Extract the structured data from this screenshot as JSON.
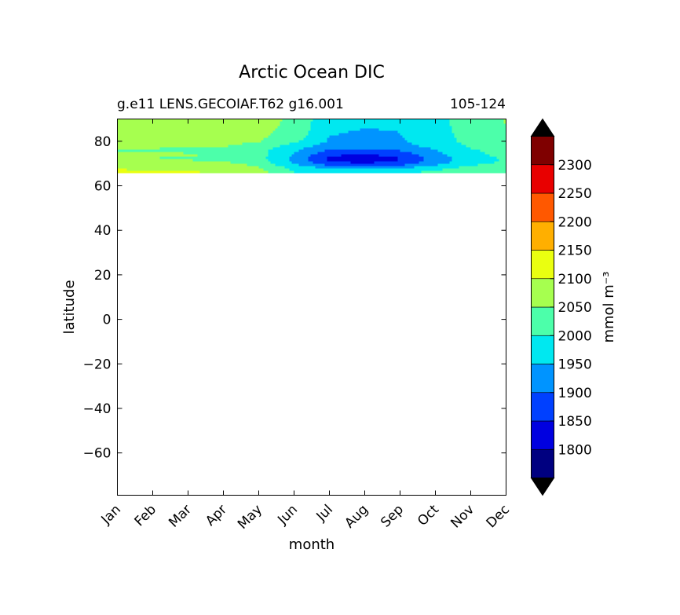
{
  "chart_data": {
    "type": "heatmap",
    "title": "Arctic Ocean DIC",
    "subtitle_left": "g.e11 LENS.GECOIAF.T62 g16.001",
    "subtitle_right": "105-124",
    "xlabel": "month",
    "ylabel": "latitude",
    "x_categories": [
      "Jan",
      "Feb",
      "Mar",
      "Apr",
      "May",
      "Jun",
      "Jul",
      "Aug",
      "Sep",
      "Oct",
      "Nov",
      "Dec"
    ],
    "ylim": [
      -79,
      90
    ],
    "yticks": [
      -60,
      -40,
      -20,
      0,
      20,
      40,
      60,
      80
    ],
    "ytick_labels": [
      "−60",
      "−40",
      "−20",
      "0",
      "20",
      "40",
      "60",
      "80"
    ],
    "data_lat_range": [
      66,
      90
    ],
    "colorbar": {
      "label": "mmol m⁻³",
      "levels": [
        1750,
        1800,
        1850,
        1900,
        1950,
        2000,
        2050,
        2100,
        2150,
        2200,
        2250,
        2300,
        2350
      ],
      "tick_labels": [
        "1800",
        "1850",
        "1900",
        "1950",
        "2000",
        "2050",
        "2100",
        "2150",
        "2200",
        "2250",
        "2300"
      ],
      "colors": [
        "#000080",
        "#0000e0",
        "#0040ff",
        "#0094ff",
        "#00e8f0",
        "#4cffaa",
        "#a6ff4f",
        "#eaff10",
        "#ffaf00",
        "#ff5800",
        "#e80000",
        "#7f0000"
      ],
      "extend": "both",
      "under_color": "#000000",
      "over_color": "#000000"
    },
    "latitudes": [
      66,
      68,
      70,
      72,
      74,
      76,
      78,
      80,
      82,
      84,
      86,
      88,
      90
    ],
    "values": [
      [
        2110,
        2108,
        2105,
        2095,
        2070,
        2000,
        1985,
        1985,
        1992,
        2010,
        2030,
        2050
      ],
      [
        2095,
        2092,
        2088,
        2078,
        2055,
        1985,
        1940,
        1935,
        1945,
        1985,
        2015,
        2040
      ],
      [
        2075,
        2072,
        2068,
        2060,
        2035,
        1945,
        1865,
        1850,
        1870,
        1930,
        1985,
        2010
      ],
      [
        2050,
        2048,
        2045,
        2038,
        2015,
        1935,
        1835,
        1820,
        1845,
        1920,
        1975,
        2005
      ],
      [
        2060,
        2058,
        2054,
        2046,
        2022,
        1945,
        1860,
        1845,
        1870,
        1935,
        1988,
        2015
      ],
      [
        2045,
        2043,
        2040,
        2034,
        2012,
        1960,
        1895,
        1890,
        1905,
        1950,
        1995,
        2020
      ],
      [
        2065,
        2063,
        2060,
        2054,
        2032,
        1980,
        1930,
        1925,
        1935,
        1965,
        2008,
        2032
      ],
      [
        2075,
        2073,
        2070,
        2066,
        2052,
        2010,
        1945,
        1942,
        1945,
        1975,
        2015,
        2042
      ],
      [
        2078,
        2076,
        2074,
        2070,
        2058,
        2025,
        1950,
        1946,
        1948,
        1978,
        2018,
        2046
      ],
      [
        2080,
        2078,
        2076,
        2072,
        2060,
        2035,
        1952,
        1948,
        1950,
        1980,
        2020,
        2048
      ],
      [
        2082,
        2080,
        2078,
        2074,
        2062,
        2040,
        1955,
        1950,
        1952,
        1982,
        2022,
        2050
      ],
      [
        2083,
        2081,
        2079,
        2075,
        2063,
        2042,
        1957,
        1952,
        1954,
        1983,
        2023,
        2051
      ],
      [
        2084,
        2082,
        2080,
        2076,
        2064,
        2043,
        1958,
        1953,
        1955,
        1984,
        2024,
        2052
      ]
    ]
  }
}
